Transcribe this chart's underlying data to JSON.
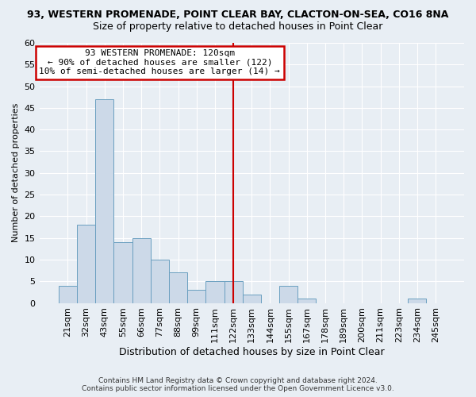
{
  "title": "93, WESTERN PROMENADE, POINT CLEAR BAY, CLACTON-ON-SEA, CO16 8NA",
  "subtitle": "Size of property relative to detached houses in Point Clear",
  "xlabel": "Distribution of detached houses by size in Point Clear",
  "ylabel": "Number of detached properties",
  "bar_labels": [
    "21sqm",
    "32sqm",
    "43sqm",
    "55sqm",
    "66sqm",
    "77sqm",
    "88sqm",
    "99sqm",
    "111sqm",
    "122sqm",
    "133sqm",
    "144sqm",
    "155sqm",
    "167sqm",
    "178sqm",
    "189sqm",
    "200sqm",
    "211sqm",
    "223sqm",
    "234sqm",
    "245sqm"
  ],
  "bar_values": [
    4,
    18,
    47,
    14,
    15,
    10,
    7,
    3,
    5,
    5,
    2,
    0,
    4,
    1,
    0,
    0,
    0,
    0,
    0,
    1,
    0
  ],
  "bar_color": "#ccd9e8",
  "bar_edge_color": "#6a9fc0",
  "vline_x_bar": 9,
  "vline_color": "#cc0000",
  "annotation_title": "93 WESTERN PROMENADE: 120sqm",
  "annotation_line1": "← 90% of detached houses are smaller (122)",
  "annotation_line2": "10% of semi-detached houses are larger (14) →",
  "annotation_box_color": "#ffffff",
  "annotation_box_edge": "#cc0000",
  "ylim": [
    0,
    60
  ],
  "yticks": [
    0,
    5,
    10,
    15,
    20,
    25,
    30,
    35,
    40,
    45,
    50,
    55,
    60
  ],
  "footer_line1": "Contains HM Land Registry data © Crown copyright and database right 2024.",
  "footer_line2": "Contains public sector information licensed under the Open Government Licence v3.0.",
  "background_color": "#e8eef4",
  "grid_color": "#ffffff",
  "title_fontsize": 9,
  "subtitle_fontsize": 9,
  "xlabel_fontsize": 9,
  "ylabel_fontsize": 8,
  "tick_fontsize": 8,
  "annot_fontsize": 8,
  "footer_fontsize": 6.5
}
